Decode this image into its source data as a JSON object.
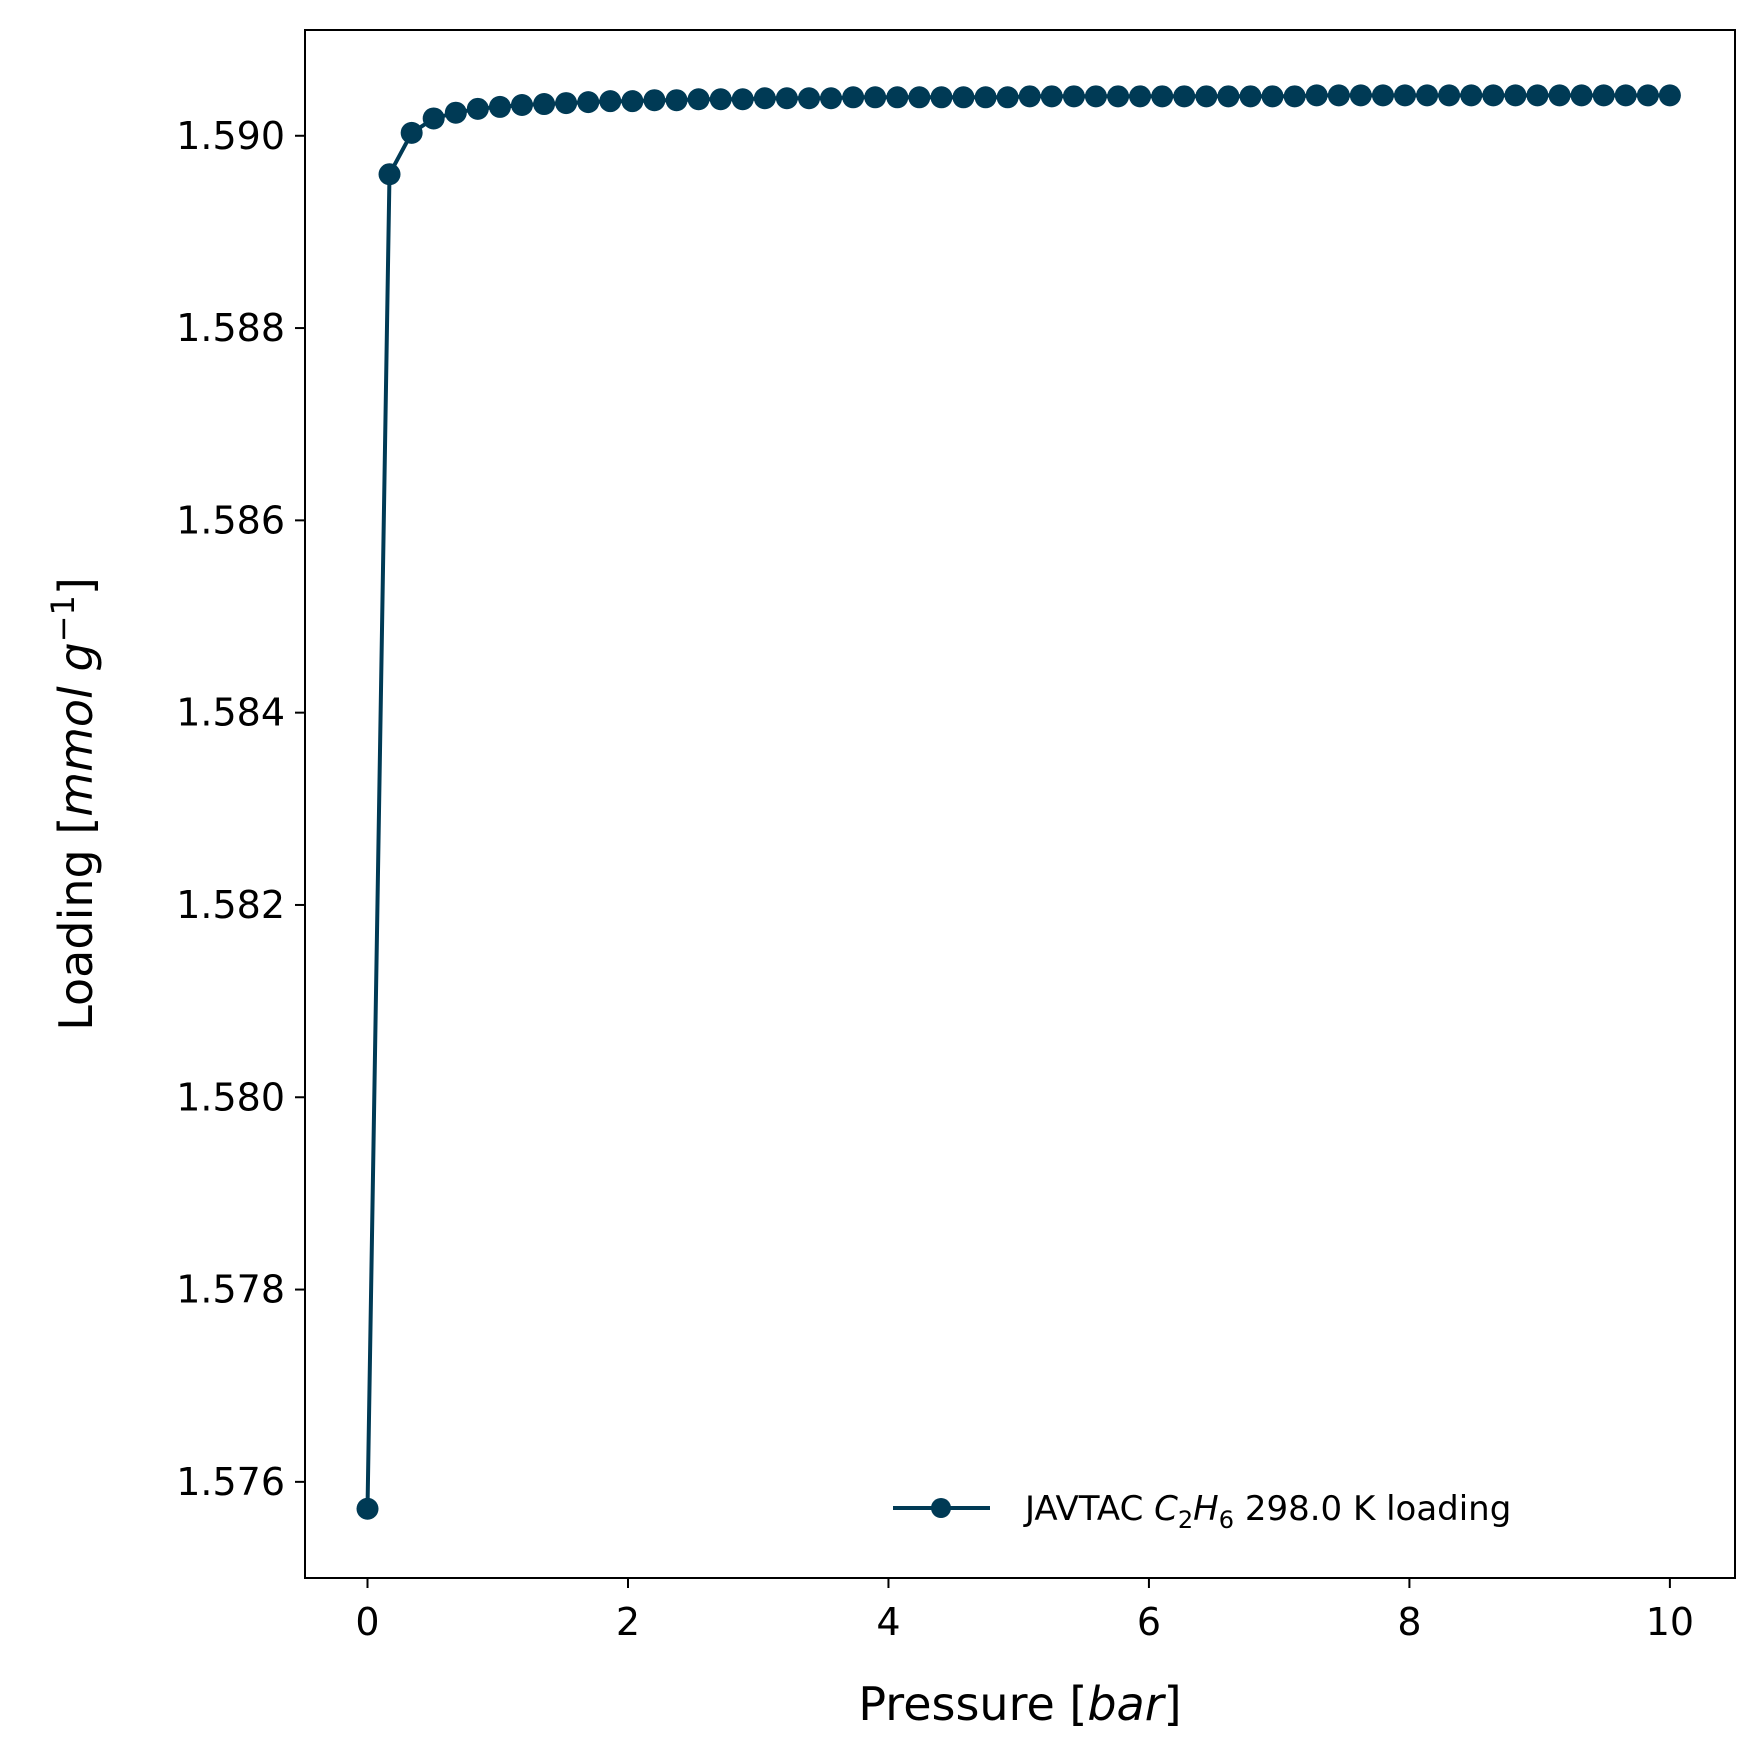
{
  "chart_data": {
    "type": "line",
    "xlabel": {
      "text": "Pressure",
      "unit": "bar"
    },
    "ylabel": {
      "text": "Loading",
      "unit_base": "mmol g",
      "unit_sup": "−1"
    },
    "xlim": [
      -0.48,
      10.5
    ],
    "ylim": [
      1.575,
      1.5911
    ],
    "xticks": [
      0,
      2,
      4,
      6,
      8,
      10
    ],
    "xtick_labels": [
      "0",
      "2",
      "4",
      "6",
      "8",
      "10"
    ],
    "yticks": [
      1.576,
      1.578,
      1.58,
      1.582,
      1.584,
      1.586,
      1.588,
      1.59
    ],
    "ytick_labels": [
      "1.576",
      "1.578",
      "1.580",
      "1.582",
      "1.584",
      "1.586",
      "1.588",
      "1.590"
    ],
    "grid": false,
    "legend": {
      "placement": "lower-right",
      "prefix": "JAVTAC",
      "species_main_1": "C",
      "species_sub_1": "2",
      "species_main_2": "H",
      "species_sub_2": "6",
      "suffix": "298.0 K loading"
    },
    "series": [
      {
        "name": "JAVTAC C2H6 298.0 K loading",
        "color": "#003a55",
        "marker": "circle",
        "x": [
          0,
          0.169,
          0.339,
          0.508,
          0.678,
          0.847,
          1.017,
          1.186,
          1.356,
          1.525,
          1.695,
          1.864,
          2.034,
          2.203,
          2.373,
          2.542,
          2.712,
          2.881,
          3.051,
          3.22,
          3.39,
          3.559,
          3.729,
          3.898,
          4.068,
          4.237,
          4.407,
          4.576,
          4.746,
          4.915,
          5.085,
          5.254,
          5.424,
          5.593,
          5.763,
          5.932,
          6.102,
          6.271,
          6.441,
          6.61,
          6.78,
          6.949,
          7.119,
          7.288,
          7.458,
          7.627,
          7.797,
          7.966,
          8.136,
          8.305,
          8.475,
          8.644,
          8.814,
          8.983,
          9.153,
          9.322,
          9.492,
          9.661,
          9.831,
          10.0
        ],
        "y": [
          1.57572,
          1.5896,
          1.59003,
          1.59018,
          1.59024,
          1.59028,
          1.5903,
          1.59032,
          1.59033,
          1.59034,
          1.59035,
          1.59036,
          1.59036,
          1.59037,
          1.59037,
          1.59038,
          1.59038,
          1.59038,
          1.59039,
          1.59039,
          1.59039,
          1.59039,
          1.5904,
          1.5904,
          1.5904,
          1.5904,
          1.5904,
          1.5904,
          1.5904,
          1.5904,
          1.59041,
          1.59041,
          1.59041,
          1.59041,
          1.59041,
          1.59041,
          1.59041,
          1.59041,
          1.59041,
          1.59041,
          1.59041,
          1.59041,
          1.59041,
          1.59042,
          1.59042,
          1.59042,
          1.59042,
          1.59042,
          1.59042,
          1.59042,
          1.59042,
          1.59042,
          1.59042,
          1.59042,
          1.59042,
          1.59042,
          1.59042,
          1.59042,
          1.59042,
          1.59042
        ]
      }
    ]
  }
}
